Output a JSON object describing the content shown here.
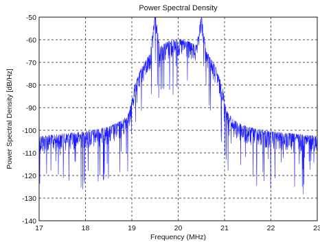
{
  "chart_data": {
    "type": "line",
    "title": "Power Spectral Density",
    "xlabel": "Frequency (MHz)",
    "ylabel": "Power Spectral Density [dB/Hz]",
    "xlim": [
      17,
      23
    ],
    "ylim": [
      -140,
      -50
    ],
    "x_ticks": [
      17,
      18,
      19,
      20,
      21,
      22,
      23
    ],
    "y_ticks": [
      -50,
      -60,
      -70,
      -80,
      -90,
      -100,
      -110,
      -120,
      -130,
      -140
    ],
    "grid": true,
    "series_color": "#1a1aff",
    "series": [
      {
        "x": [
          17.0,
          17.5,
          18.0,
          18.5,
          18.8,
          18.95,
          19.05,
          19.2,
          19.4,
          19.5,
          19.6,
          19.8,
          20.0,
          20.2,
          20.4,
          20.5,
          20.6,
          20.8,
          20.95,
          21.05,
          21.2,
          21.5,
          22.0,
          22.5,
          23.0
        ],
        "y": [
          -106,
          -105,
          -104,
          -102,
          -99,
          -95,
          -84,
          -76,
          -69,
          -51,
          -66,
          -64,
          -63,
          -64,
          -66,
          -52,
          -68,
          -75,
          -84,
          -95,
          -99,
          -102,
          -104,
          -105,
          -106
        ]
      }
    ]
  }
}
